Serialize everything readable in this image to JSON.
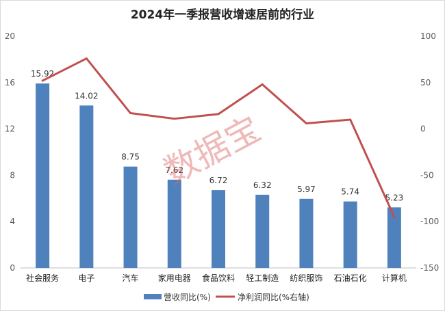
{
  "chart_data": {
    "type": "bar",
    "title": "2024年一季报营收增速居前的行业",
    "categories": [
      "社会服务",
      "电子",
      "汽车",
      "家用电器",
      "食品饮料",
      "轻工制造",
      "纺织服饰",
      "石油石化",
      "计算机"
    ],
    "series": [
      {
        "name": "营收同比(%)",
        "type": "bar",
        "axis": "left",
        "color": "#4f81bd",
        "values": [
          15.92,
          14.02,
          8.75,
          7.62,
          6.72,
          6.32,
          5.97,
          5.74,
          5.23
        ],
        "labels": [
          "15.92",
          "14.02",
          "8.75",
          "7.62",
          "6.72",
          "6.32",
          "5.97",
          "5.74",
          "5.23"
        ]
      },
      {
        "name": "净利润同比(%右轴)",
        "type": "line",
        "axis": "right",
        "color": "#c0504d",
        "values": [
          52,
          76,
          17,
          11,
          16,
          48,
          6,
          10,
          -95
        ]
      }
    ],
    "y_left": {
      "min": 0,
      "max": 20,
      "ticks": [
        0,
        4,
        8,
        12,
        16,
        20
      ]
    },
    "y_right": {
      "min": -150,
      "max": 100,
      "ticks": [
        -150,
        -100,
        -50,
        0,
        50,
        100
      ]
    },
    "legend_position": "bottom",
    "grid": false,
    "watermark": "数据宝"
  }
}
